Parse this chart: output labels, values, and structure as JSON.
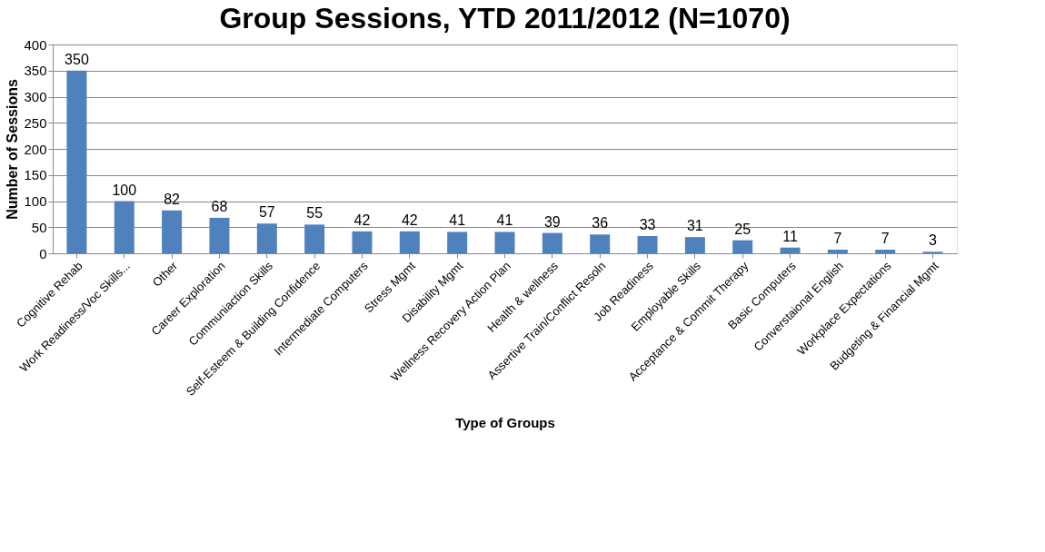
{
  "chart_data": {
    "type": "bar",
    "title": "Group Sessions, YTD 2011/2012 (N=1070)",
    "xlabel": "Type of Groups",
    "ylabel": "Number of Sessions",
    "categories": [
      "Cognitive Rehab",
      "Work Readiness/Voc Skills...",
      "Other",
      "Career Exploration",
      "Communiaction Skills",
      "Self-Esteem & Building Confidence",
      "Intermediate Computers",
      "Stress Mgmt",
      "Disability Mgmt",
      "Wellness Recovery Action Plan",
      "Health & wellness",
      "Assertive Train/Conflict Resoln",
      "Job Readiness",
      "Employable Skills",
      "Acceptance & Commit Therapy",
      "Basic Computers",
      "Converstaional English",
      "Workplace Expectations",
      "Budgeting & Financial Mgmt"
    ],
    "values": [
      350,
      100,
      82,
      68,
      57,
      55,
      42,
      42,
      41,
      41,
      39,
      36,
      33,
      31,
      25,
      11,
      7,
      7,
      3
    ],
    "color": "#4f81bd",
    "ylim": [
      0,
      400
    ],
    "yticks": [
      0,
      50,
      100,
      150,
      200,
      250,
      300,
      350,
      400
    ],
    "grid": "y",
    "data_labels": true
  }
}
